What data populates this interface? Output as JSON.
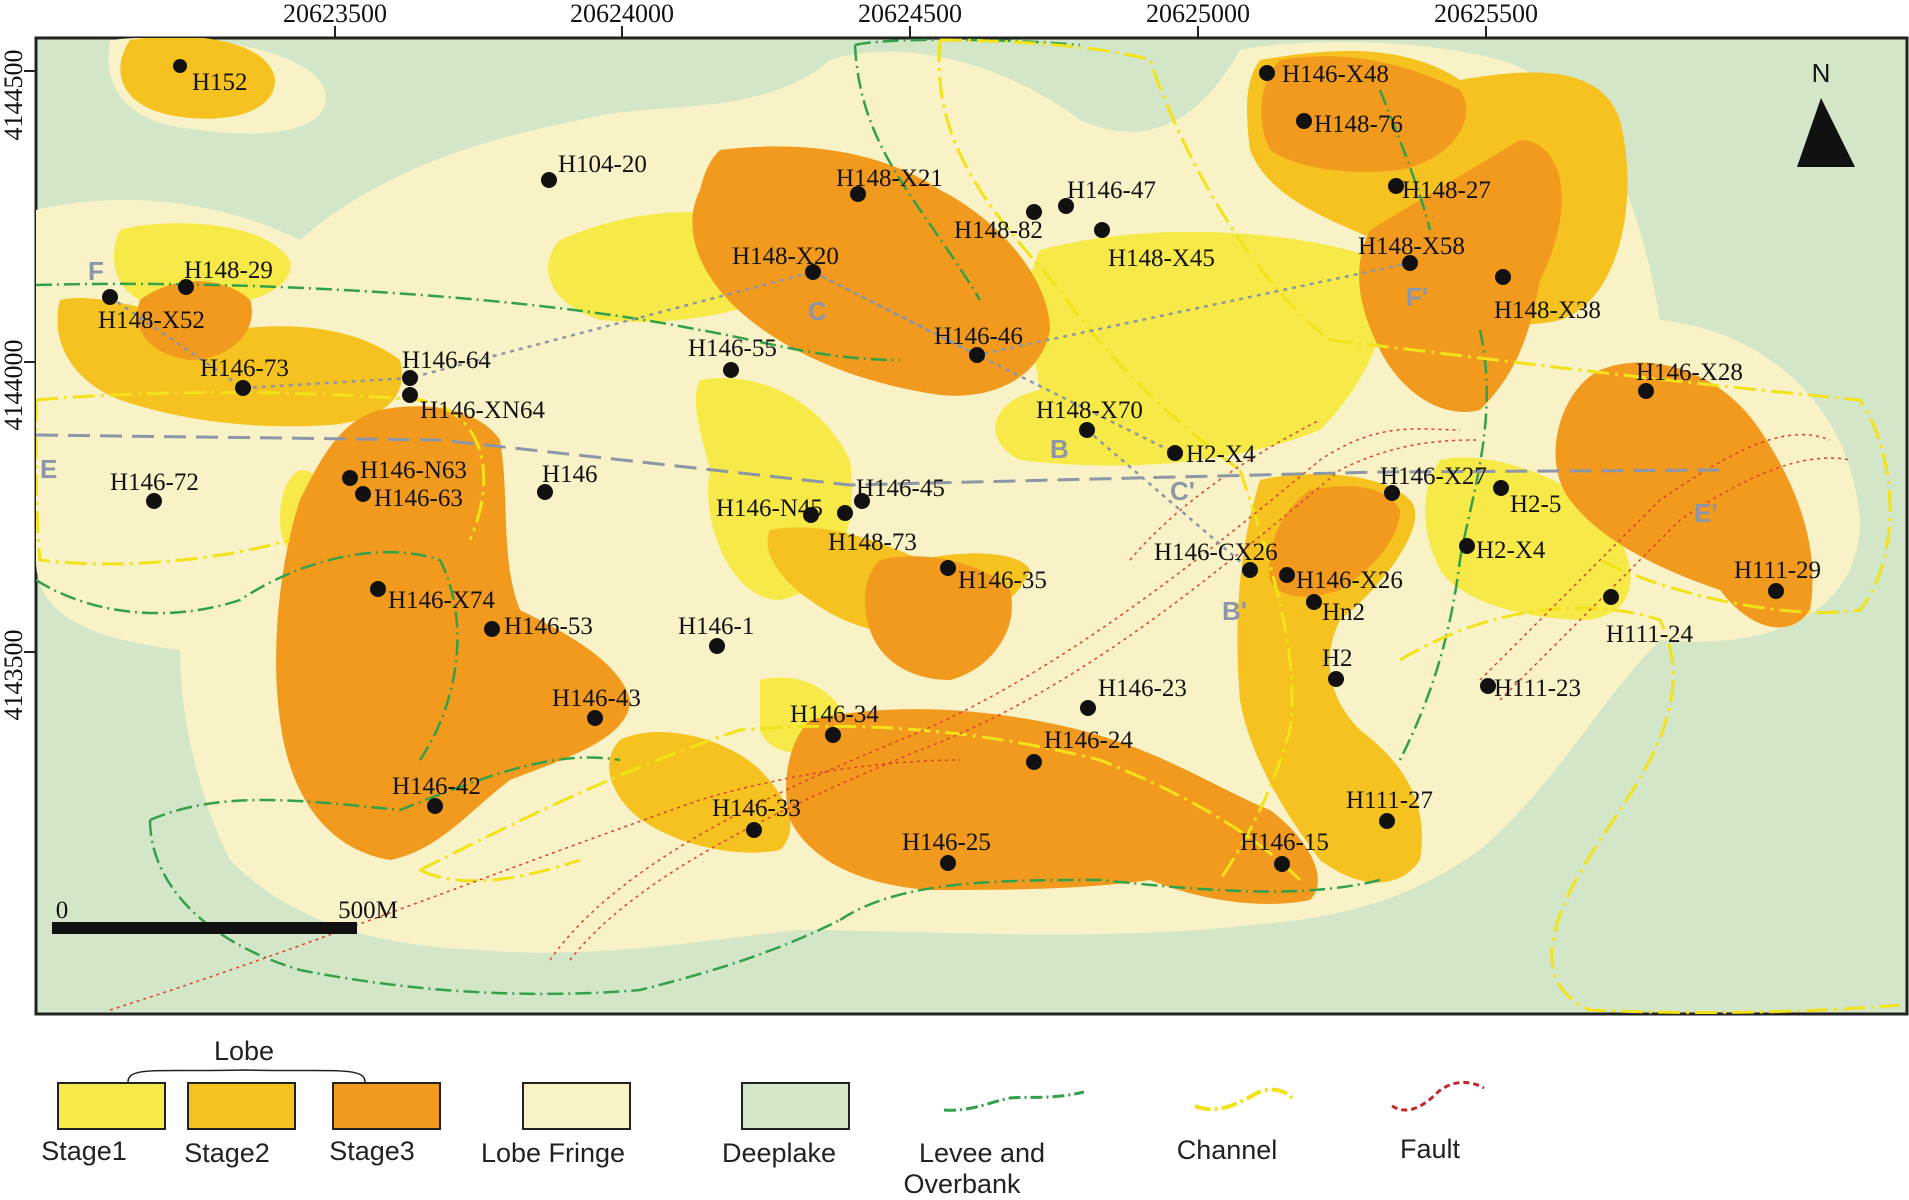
{
  "colors": {
    "deeplake": "#d3e6c8",
    "fringe": "#f8f2c6",
    "stage1": "#f7ea48",
    "stage2": "#f6c21f",
    "stage3": "#f29a1e",
    "levee": "#33a04a",
    "channel": "#f2e21a",
    "fault": "#e0402a",
    "section": "#8c96a6",
    "well": "#111111"
  },
  "axes": {
    "x_ticks": [
      "20623500",
      "20624000",
      "20624500",
      "20625000",
      "20625500"
    ],
    "y_ticks": [
      "4144500",
      "4144000",
      "4143500"
    ]
  },
  "north": {
    "label": "N",
    "icon": "north-arrow-icon"
  },
  "scale_bar": {
    "start_label": "0",
    "end_label": "500M"
  },
  "sections": [
    {
      "id": "E",
      "label": "E"
    },
    {
      "id": "E_end",
      "label": "E'"
    },
    {
      "id": "F",
      "label": "F"
    },
    {
      "id": "F_end",
      "label": "F'"
    },
    {
      "id": "C",
      "label": "C"
    },
    {
      "id": "C_end",
      "label": "C'"
    },
    {
      "id": "B",
      "label": "B"
    },
    {
      "id": "B_end",
      "label": "B'"
    }
  ],
  "wells": [
    {
      "name": "H152"
    },
    {
      "name": "H104-20"
    },
    {
      "name": "H148-X21"
    },
    {
      "name": "H146-47"
    },
    {
      "name": "H148-82"
    },
    {
      "name": "H148-X45"
    },
    {
      "name": "H146-X48"
    },
    {
      "name": "H148-76"
    },
    {
      "name": "H148-27"
    },
    {
      "name": "H148-X58"
    },
    {
      "name": "H148-X38"
    },
    {
      "name": "H148-29"
    },
    {
      "name": "H148-X52"
    },
    {
      "name": "H148-X20"
    },
    {
      "name": "H146-46"
    },
    {
      "name": "H146-73"
    },
    {
      "name": "H146-64"
    },
    {
      "name": "H146-XN64"
    },
    {
      "name": "H146-55"
    },
    {
      "name": "H146-X28"
    },
    {
      "name": "H148-X70"
    },
    {
      "name": "H2-X4"
    },
    {
      "name": "H146-72"
    },
    {
      "name": "H146-N63"
    },
    {
      "name": "H146-63"
    },
    {
      "name": "H146"
    },
    {
      "name": "H146-45"
    },
    {
      "name": "H146-N45"
    },
    {
      "name": "H148-73"
    },
    {
      "name": "H146-X27"
    },
    {
      "name": "H2-5"
    },
    {
      "name": "H2-X4"
    },
    {
      "name": "H146-CX26"
    },
    {
      "name": "H146-X26"
    },
    {
      "name": "Hn2"
    },
    {
      "name": "H146-35"
    },
    {
      "name": "H111-29"
    },
    {
      "name": "H111-24"
    },
    {
      "name": "H146-X74"
    },
    {
      "name": "H146-53"
    },
    {
      "name": "H146-1"
    },
    {
      "name": "H2"
    },
    {
      "name": "H146-23"
    },
    {
      "name": "H111-23"
    },
    {
      "name": "H146-43"
    },
    {
      "name": "H146-34"
    },
    {
      "name": "H146-24"
    },
    {
      "name": "H146-42"
    },
    {
      "name": "H146-33"
    },
    {
      "name": "H111-27"
    },
    {
      "name": "H146-25"
    },
    {
      "name": "H146-15"
    }
  ],
  "legend": {
    "group_label": "Lobe",
    "stage1": "Stage1",
    "stage2": "Stage2",
    "stage3": "Stage3",
    "fringe": "Lobe Fringe",
    "deeplake": "Deeplake",
    "levee_line1": "Levee and",
    "levee_line2": "Overbank",
    "channel": "Channel",
    "fault": "Fault"
  }
}
